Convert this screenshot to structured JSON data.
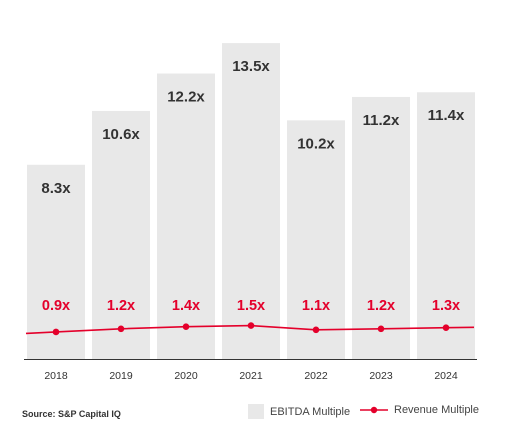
{
  "chart_data": {
    "type": "bar",
    "categories": [
      "2018",
      "2019",
      "2020",
      "2021",
      "2022",
      "2023",
      "2024"
    ],
    "series": [
      {
        "name": "EBITDA Multiple",
        "type": "bar",
        "values": [
          8.3,
          10.6,
          12.2,
          13.5,
          10.2,
          11.2,
          11.4
        ],
        "labels": [
          "8.3x",
          "10.6x",
          "12.2x",
          "13.5x",
          "10.2x",
          "11.2x",
          "11.4x"
        ]
      },
      {
        "name": "Revenue Multiple",
        "type": "line",
        "values": [
          0.9,
          1.2,
          1.4,
          1.5,
          1.1,
          1.2,
          1.3
        ],
        "labels": [
          "0.9x",
          "1.2x",
          "1.4x",
          "1.5x",
          "1.1x",
          "1.2x",
          "1.3x"
        ]
      }
    ],
    "colors": {
      "bar": "#e8e8e8",
      "line": "#e4002b",
      "text": "#333333"
    },
    "legend_position": "bottom-right",
    "grid": false
  },
  "source": "Source: S&P Capital IQ",
  "legend": {
    "ebitda": "EBITDA Multiple",
    "revenue": "Revenue Multiple"
  }
}
